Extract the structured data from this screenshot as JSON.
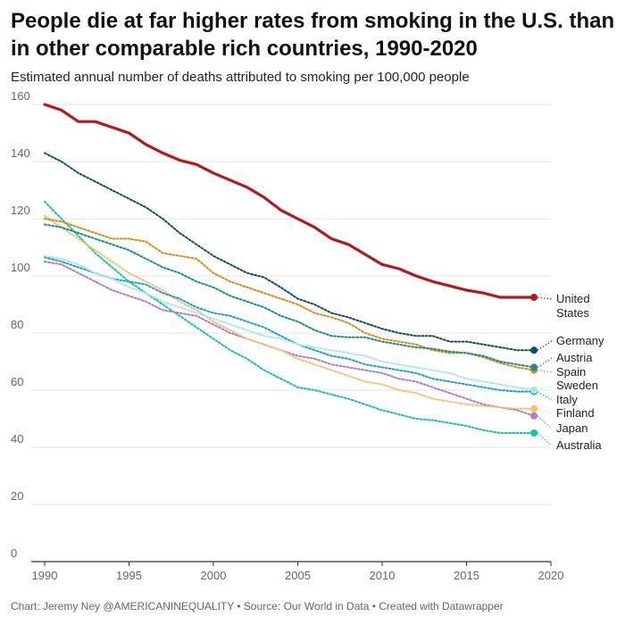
{
  "title": "People die at far higher rates from smoking in the U.S. than in other comparable rich countries, 1990-2020",
  "subtitle": "Estimated annual number of deaths attributed to smoking per 100,000 people",
  "footer": "Chart: Jeremy Ney @AMERICANINEQUALITY • Source: Our World in Data • Created with Datawrapper",
  "chart_data": {
    "type": "line",
    "title": "People die at far higher rates from smoking in the U.S. than in other comparable rich countries, 1990-2020",
    "subtitle": "Estimated annual number of deaths attributed to smoking per 100,000 people",
    "xlabel": "",
    "ylabel": "",
    "xlim": [
      1990,
      2020
    ],
    "ylim": [
      0,
      160
    ],
    "x_ticks": [
      1990,
      1995,
      2000,
      2005,
      2010,
      2015,
      2020
    ],
    "y_ticks": [
      0,
      20,
      40,
      60,
      80,
      100,
      120,
      140,
      160
    ],
    "grid": true,
    "legend": "direct labels at right",
    "x": [
      1990,
      1991,
      1992,
      1993,
      1994,
      1995,
      1996,
      1997,
      1998,
      1999,
      2000,
      2001,
      2002,
      2003,
      2004,
      2005,
      2006,
      2007,
      2008,
      2009,
      2010,
      2011,
      2012,
      2013,
      2014,
      2015,
      2016,
      2017,
      2018,
      2019
    ],
    "series": [
      {
        "name": "United States",
        "label_lines": [
          "United",
          "States"
        ],
        "color": "#b5191b",
        "dashed": false,
        "values": [
          160,
          158,
          154,
          154,
          152,
          150,
          146,
          143,
          140.5,
          139,
          136,
          133.5,
          131,
          127.5,
          123,
          120,
          117,
          113,
          111,
          107.5,
          104,
          102.5,
          100,
          98,
          96.5,
          95,
          94,
          92.5,
          92.5,
          92.5
        ]
      },
      {
        "name": "Germany",
        "label_lines": [
          "Germany"
        ],
        "color": "#0e4f5c",
        "dashed": true,
        "values": [
          143,
          140,
          136,
          133,
          130,
          127,
          124,
          120,
          115,
          111,
          107,
          104,
          101,
          99.5,
          96,
          92,
          90,
          87,
          85.5,
          83.5,
          81.5,
          80,
          79,
          79,
          77,
          77,
          76,
          75,
          74,
          74
        ]
      },
      {
        "name": "Austria",
        "label_lines": [
          "Austria"
        ],
        "color": "#1b8f85",
        "dashed": true,
        "values": [
          118,
          117,
          115,
          113,
          111,
          109,
          106,
          103,
          101,
          98,
          96,
          93,
          91,
          89,
          86,
          84,
          81,
          79,
          78.5,
          78.5,
          77,
          76,
          75,
          74.5,
          73.5,
          73,
          72,
          70,
          69,
          68
        ]
      },
      {
        "name": "Spain",
        "label_lines": [
          "Spain"
        ],
        "color": "#d98b1c",
        "dashed": true,
        "values": [
          120,
          119,
          117,
          115,
          113,
          113,
          112,
          108,
          107,
          106,
          101,
          98,
          96,
          94,
          92,
          90,
          87,
          85.5,
          83.5,
          80,
          78,
          77,
          76,
          74,
          73,
          73,
          71.5,
          69.5,
          68,
          67
        ]
      },
      {
        "name": "Sweden",
        "label_lines": [
          "Sweden"
        ],
        "color": "#a9e6ec",
        "dashed": true,
        "values": [
          107,
          106,
          104,
          101,
          99,
          96,
          94,
          91,
          89,
          87,
          85,
          83,
          81,
          79,
          78,
          76,
          75,
          74,
          73,
          72,
          70,
          69,
          68,
          67,
          66,
          64,
          63,
          62,
          61,
          60
        ]
      },
      {
        "name": "Italy",
        "label_lines": [
          "Italy"
        ],
        "color": "#1aa3c8",
        "dashed": true,
        "values": [
          106.5,
          105,
          103,
          101,
          99,
          98,
          97,
          94,
          92,
          89,
          87,
          86,
          84,
          82,
          79,
          76,
          74,
          72,
          71,
          69,
          68,
          67,
          66,
          64,
          63,
          62,
          61,
          60,
          59.5,
          59.5
        ]
      },
      {
        "name": "Finland",
        "label_lines": [
          "Finland"
        ],
        "color": "#f4c072",
        "dashed": true,
        "values": [
          121,
          117,
          113,
          109,
          105,
          101,
          98,
          95,
          91,
          88,
          84,
          81,
          78,
          76,
          74,
          71,
          69,
          67,
          65,
          63,
          62,
          60,
          59,
          57,
          56,
          55,
          54.5,
          54,
          53.5,
          53.5
        ]
      },
      {
        "name": "Japan",
        "label_lines": [
          "Japan"
        ],
        "color": "#b07cc6",
        "dashed": true,
        "values": [
          105,
          104,
          101,
          98,
          95,
          93,
          91,
          88,
          87,
          86,
          83,
          80,
          78,
          76,
          74,
          72,
          71,
          69,
          68,
          67,
          66,
          64,
          63,
          61,
          59,
          57,
          55,
          54,
          53,
          51
        ]
      },
      {
        "name": "Australia",
        "label_lines": [
          "Australia"
        ],
        "color": "#18c4a0",
        "dashed": true,
        "values": [
          126,
          120,
          114,
          108,
          103,
          98,
          94,
          90,
          86,
          82,
          78,
          74,
          71,
          67,
          64,
          61,
          60,
          58.5,
          57,
          55,
          53,
          51.5,
          50,
          49.5,
          48.5,
          47.5,
          46,
          45,
          45,
          45
        ]
      }
    ]
  }
}
